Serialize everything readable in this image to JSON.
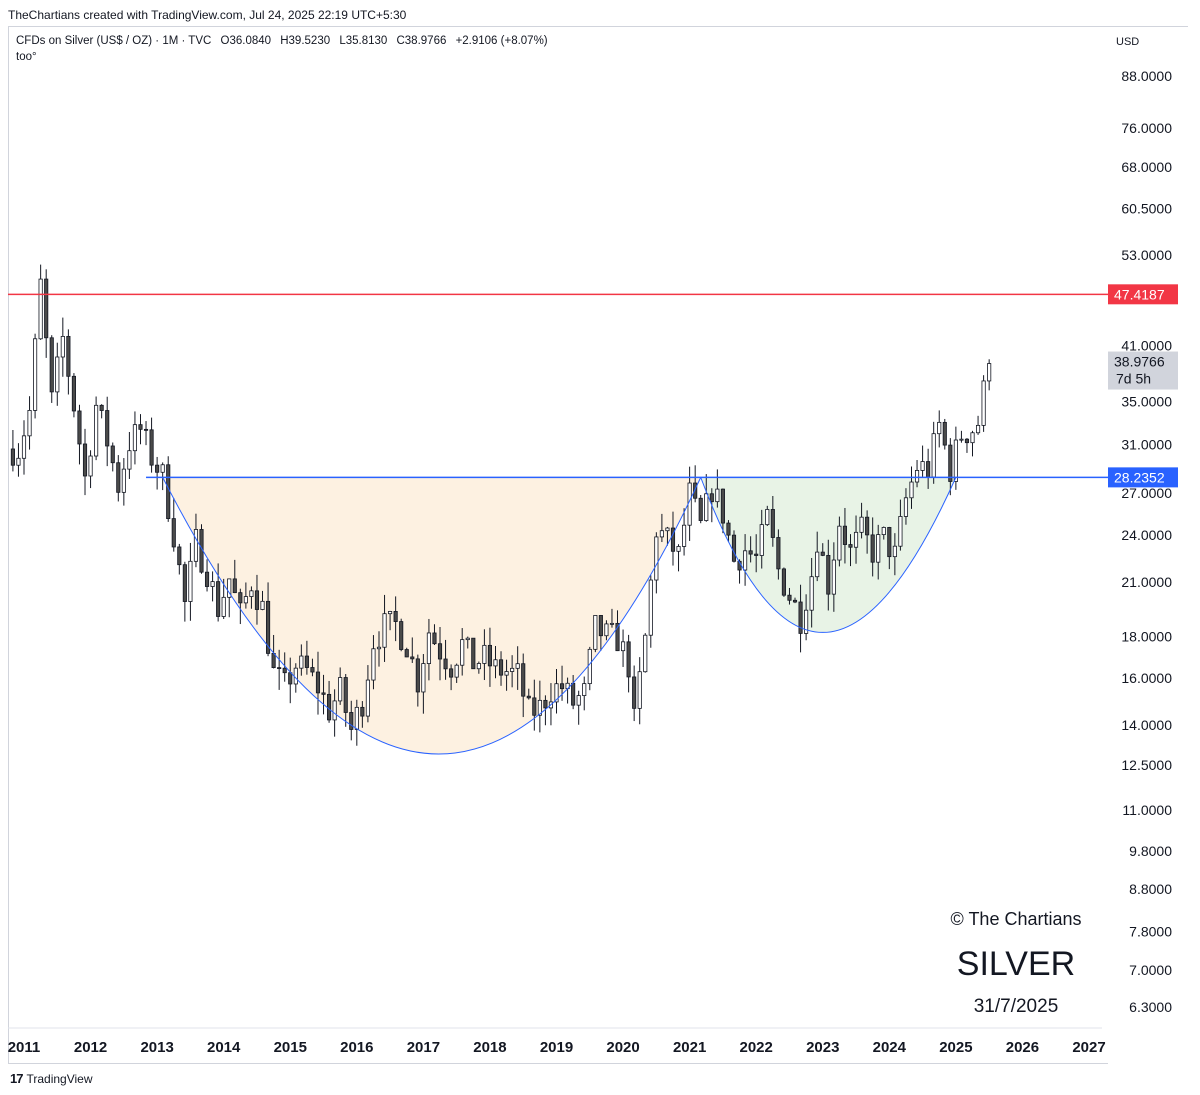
{
  "header": {
    "attribution": "TheChartians created with TradingView.com, Jul 24, 2025 22:19 UTC+5:30"
  },
  "legend": {
    "symbol": "CFDs on Silver (US$ / OZ) · 1M · TVC",
    "open": "O36.0840",
    "high": "H39.5230",
    "low": "L35.8130",
    "close": "C38.9766",
    "change": "+2.9106 (+8.07%)",
    "sub": "too°"
  },
  "axis": {
    "currency": "USD",
    "y_ticks": [
      "88.0000",
      "76.0000",
      "68.0000",
      "60.5000",
      "53.0000",
      "41.0000",
      "35.0000",
      "31.0000",
      "27.0000",
      "24.0000",
      "21.0000",
      "18.0000",
      "16.0000",
      "14.0000",
      "12.5000",
      "11.0000",
      "9.8000",
      "8.8000",
      "7.8000",
      "7.0000",
      "6.3000"
    ],
    "x_ticks": [
      "2011",
      "2012",
      "2013",
      "2014",
      "2015",
      "2016",
      "2017",
      "2018",
      "2019",
      "2020",
      "2021",
      "2022",
      "2023",
      "2024",
      "2025",
      "2026",
      "2027"
    ]
  },
  "badges": {
    "resistance": "47.4187",
    "support": "28.2352",
    "price": "38.9766",
    "countdown": "7d 5h"
  },
  "watermark": {
    "copyright": "© The Chartians",
    "title": "SILVER",
    "date": "31/7/2025"
  },
  "footer": {
    "logo": "17",
    "brand": "TradingView"
  },
  "colors": {
    "resistance": "#f23645",
    "support": "#2962ff",
    "cup_fill": "#fdf1e1",
    "handle_fill": "#e8f3e6",
    "curve": "#2962ff",
    "candle_up": "#ffffff",
    "candle_down": "#4a4a4a",
    "candle_border": "#131722"
  },
  "chart_data": {
    "type": "candlestick",
    "scale": "log",
    "ylim": [
      6.0,
      100.0
    ],
    "x_range": [
      "2010-12",
      "2027-02"
    ],
    "resistance_level": 47.4187,
    "support_level": 28.2352,
    "last_close": 38.9766,
    "patterns": [
      {
        "name": "cup",
        "start": "2013-02",
        "end": "2021-03",
        "rim": 28.2352,
        "bottom": 12.9,
        "bottom_date": "2017-05"
      },
      {
        "name": "handle",
        "start": "2021-03",
        "end": "2025-01",
        "rim": 28.2352,
        "bottom": 18.2,
        "bottom_date": "2022-12"
      }
    ],
    "monthly_close": [
      {
        "date": "2010-12",
        "close": 30.6
      },
      {
        "date": "2011-02",
        "close": 34.0
      },
      {
        "date": "2011-04",
        "close": 48.6
      },
      {
        "date": "2011-06",
        "close": 35.0
      },
      {
        "date": "2011-08",
        "close": 41.8
      },
      {
        "date": "2011-10",
        "close": 34.6
      },
      {
        "date": "2011-12",
        "close": 28.2
      },
      {
        "date": "2012-02",
        "close": 34.6
      },
      {
        "date": "2012-04",
        "close": 31.3
      },
      {
        "date": "2012-06",
        "close": 27.6
      },
      {
        "date": "2012-08",
        "close": 31.2
      },
      {
        "date": "2012-10",
        "close": 32.3
      },
      {
        "date": "2012-12",
        "close": 29.9
      },
      {
        "date": "2013-02",
        "close": 28.3
      },
      {
        "date": "2013-04",
        "close": 24.1
      },
      {
        "date": "2013-06",
        "close": 19.7
      },
      {
        "date": "2013-08",
        "close": 23.5
      },
      {
        "date": "2013-10",
        "close": 21.7
      },
      {
        "date": "2013-12",
        "close": 19.5
      },
      {
        "date": "2014-02",
        "close": 21.2
      },
      {
        "date": "2014-04",
        "close": 19.1
      },
      {
        "date": "2014-06",
        "close": 21.0
      },
      {
        "date": "2014-08",
        "close": 19.5
      },
      {
        "date": "2014-10",
        "close": 16.2
      },
      {
        "date": "2014-12",
        "close": 15.6
      },
      {
        "date": "2015-02",
        "close": 16.6
      },
      {
        "date": "2015-04",
        "close": 16.3
      },
      {
        "date": "2015-06",
        "close": 15.6
      },
      {
        "date": "2015-08",
        "close": 14.6
      },
      {
        "date": "2015-10",
        "close": 15.4
      },
      {
        "date": "2015-12",
        "close": 13.8
      },
      {
        "date": "2016-02",
        "close": 15.0
      },
      {
        "date": "2016-04",
        "close": 17.8
      },
      {
        "date": "2016-06",
        "close": 18.5
      },
      {
        "date": "2016-08",
        "close": 18.6
      },
      {
        "date": "2016-10",
        "close": 17.6
      },
      {
        "date": "2016-12",
        "close": 15.9
      },
      {
        "date": "2017-02",
        "close": 18.3
      },
      {
        "date": "2017-04",
        "close": 17.3
      },
      {
        "date": "2017-06",
        "close": 16.6
      },
      {
        "date": "2017-08",
        "close": 17.6
      },
      {
        "date": "2017-10",
        "close": 16.7
      },
      {
        "date": "2017-12",
        "close": 16.9
      },
      {
        "date": "2018-02",
        "close": 16.4
      },
      {
        "date": "2018-04",
        "close": 16.3
      },
      {
        "date": "2018-06",
        "close": 16.1
      },
      {
        "date": "2018-08",
        "close": 14.5
      },
      {
        "date": "2018-10",
        "close": 14.7
      },
      {
        "date": "2018-12",
        "close": 15.5
      },
      {
        "date": "2019-02",
        "close": 15.6
      },
      {
        "date": "2019-04",
        "close": 14.9
      },
      {
        "date": "2019-06",
        "close": 15.3
      },
      {
        "date": "2019-08",
        "close": 18.4
      },
      {
        "date": "2019-10",
        "close": 18.0
      },
      {
        "date": "2019-12",
        "close": 17.9
      },
      {
        "date": "2020-02",
        "close": 16.6
      },
      {
        "date": "2020-03",
        "close": 14.1
      },
      {
        "date": "2020-05",
        "close": 17.9
      },
      {
        "date": "2020-07",
        "close": 24.4
      },
      {
        "date": "2020-09",
        "close": 23.6
      },
      {
        "date": "2020-11",
        "close": 22.6
      },
      {
        "date": "2021-01",
        "close": 26.9
      },
      {
        "date": "2021-03",
        "close": 24.5
      },
      {
        "date": "2021-05",
        "close": 27.4
      },
      {
        "date": "2021-07",
        "close": 25.5
      },
      {
        "date": "2021-09",
        "close": 22.3
      },
      {
        "date": "2021-11",
        "close": 23.0
      },
      {
        "date": "2022-01",
        "close": 22.4
      },
      {
        "date": "2022-03",
        "close": 25.1
      },
      {
        "date": "2022-05",
        "close": 21.7
      },
      {
        "date": "2022-07",
        "close": 20.2
      },
      {
        "date": "2022-09",
        "close": 19.0
      },
      {
        "date": "2022-11",
        "close": 21.5
      },
      {
        "date": "2022-12",
        "close": 23.9
      },
      {
        "date": "2023-02",
        "close": 20.9
      },
      {
        "date": "2023-04",
        "close": 25.0
      },
      {
        "date": "2023-06",
        "close": 22.8
      },
      {
        "date": "2023-08",
        "close": 24.2
      },
      {
        "date": "2023-10",
        "close": 22.9
      },
      {
        "date": "2023-12",
        "close": 23.8
      },
      {
        "date": "2024-02",
        "close": 22.6
      },
      {
        "date": "2024-04",
        "close": 26.5
      },
      {
        "date": "2024-06",
        "close": 29.1
      },
      {
        "date": "2024-08",
        "close": 28.9
      },
      {
        "date": "2024-10",
        "close": 32.7
      },
      {
        "date": "2024-12",
        "close": 28.9
      },
      {
        "date": "2025-02",
        "close": 31.9
      },
      {
        "date": "2025-04",
        "close": 32.4
      },
      {
        "date": "2025-05",
        "close": 33.0
      },
      {
        "date": "2025-06",
        "close": 36.0
      },
      {
        "date": "2025-07",
        "close": 38.9766
      }
    ]
  }
}
